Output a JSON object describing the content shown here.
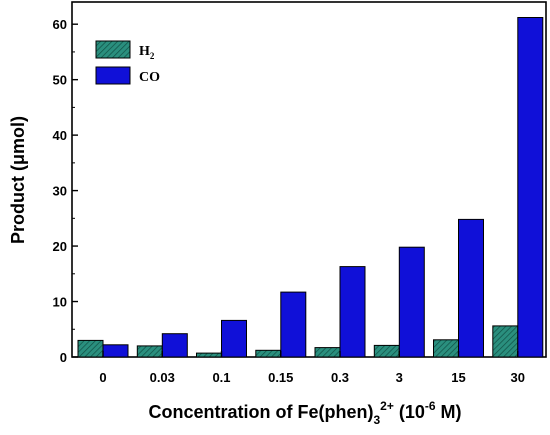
{
  "chart_data": {
    "type": "bar",
    "categories": [
      "0",
      "0.03",
      "0.1",
      "0.15",
      "0.3",
      "3",
      "15",
      "30"
    ],
    "series": [
      {
        "name": "H2",
        "legend_main": "H",
        "legend_sub": "2",
        "color": "#2a8f7e",
        "pattern": "hatched",
        "values": [
          3.0,
          2.0,
          0.7,
          1.2,
          1.7,
          2.1,
          3.1,
          5.6
        ]
      },
      {
        "name": "CO",
        "legend_main": "CO",
        "legend_sub": "",
        "color": "#1010d8",
        "pattern": "solid",
        "values": [
          2.2,
          4.2,
          6.6,
          11.7,
          16.3,
          19.8,
          24.8,
          61.2
        ]
      }
    ],
    "ylim": [
      0,
      64
    ],
    "yticks": [
      0,
      10,
      20,
      30,
      40,
      50,
      60
    ],
    "ylabel": "Product (μmol)",
    "xlabel": {
      "prefix": "Concentration of Fe(phen)",
      "sub": "3",
      "sup": "2+",
      "open": " (10",
      "unit_sup": "-6",
      "close": " M)"
    },
    "legend_position": "top-left",
    "grid": false
  }
}
